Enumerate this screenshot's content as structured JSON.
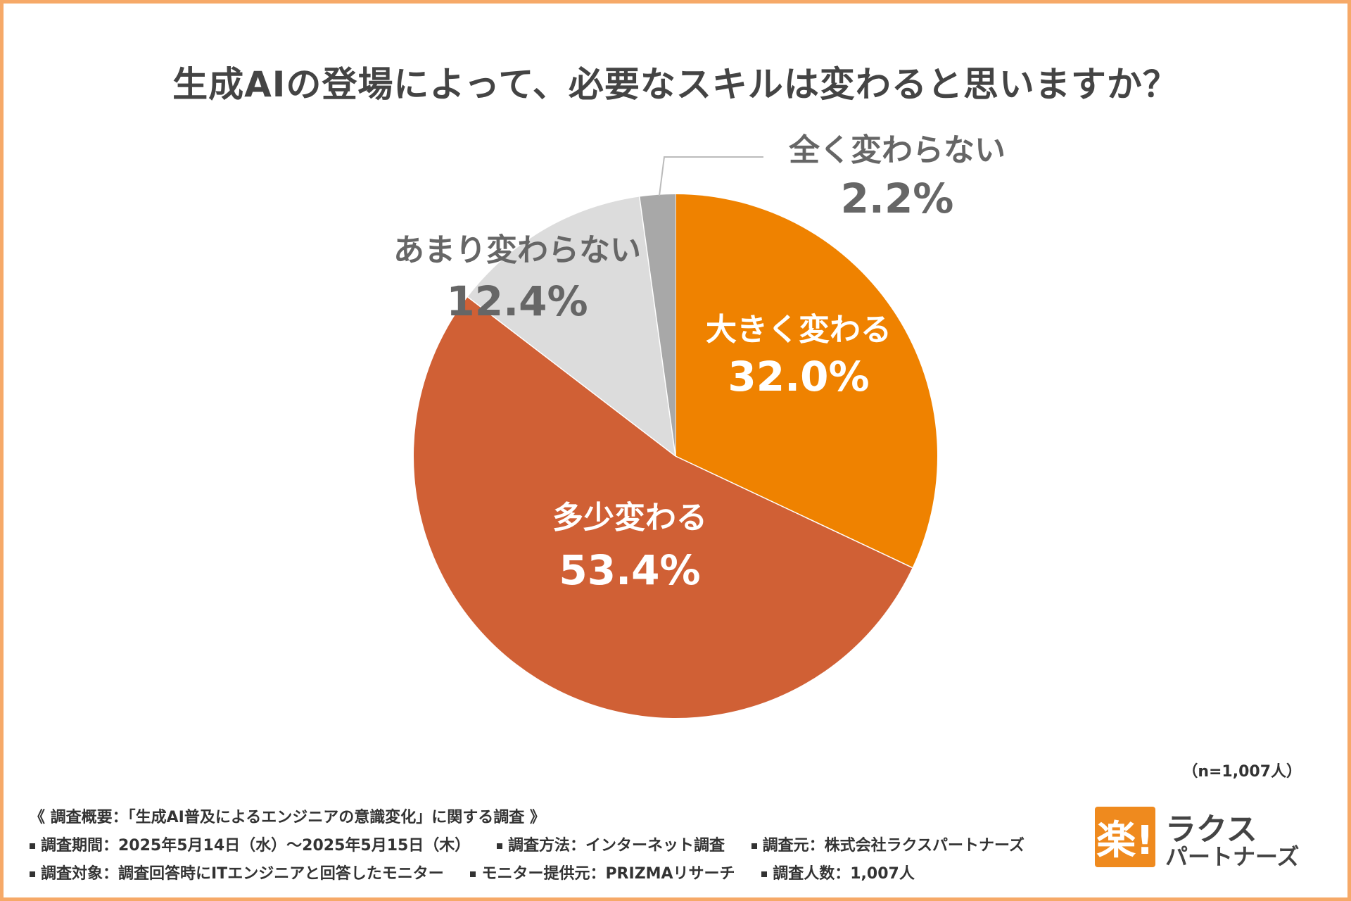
{
  "chart_data": {
    "type": "pie",
    "title": "生成AIの登場によって、必要なスキルは変わると思いますか？",
    "series": [
      {
        "name": "大きく変わる",
        "value": 32.0,
        "display": "32.0%",
        "color": "#ef8200"
      },
      {
        "name": "多少変わる",
        "value": 53.4,
        "display": "53.4%",
        "color": "#d06035"
      },
      {
        "name": "あまり変わらない",
        "value": 12.4,
        "display": "12.4%",
        "color": "#dcdcdc"
      },
      {
        "name": "全く変わらない",
        "value": 2.2,
        "display": "2.2%",
        "color": "#a8a8a8"
      }
    ],
    "sample_note": "（n=1,007人）"
  },
  "footer": {
    "heading": "《 調査概要：「生成AI普及によるエンジニアの意識変化」に関する調査 》",
    "period": "調査期間：2025年5月14日（水）～2025年5月15日（木）",
    "method": "調査方法：インターネット調査",
    "organizer": "調査元：株式会社ラクスパートナーズ",
    "target": "調査対象：調査回答時にITエンジニアと回答したモニター",
    "provider": "モニター提供元：PRIZMAリサーチ",
    "count": "調査人数：1,007人"
  },
  "logo": {
    "mark": "楽!",
    "line1": "ラクス",
    "line2": "パートナーズ"
  }
}
